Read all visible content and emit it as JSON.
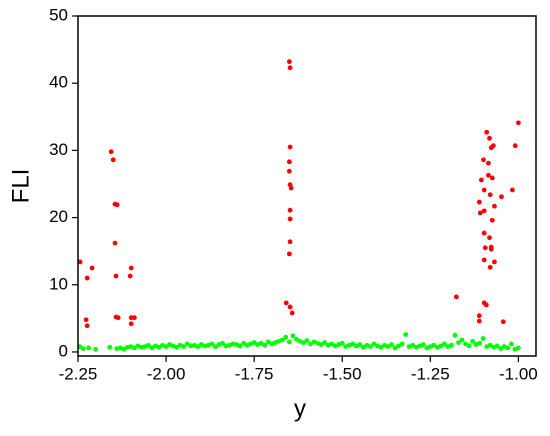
{
  "chart_data": {
    "type": "scatter",
    "x_label": "y",
    "y_label": "FLI",
    "xlim": [
      -2.25,
      -0.95
    ],
    "ylim": [
      -0.6,
      50
    ],
    "xticks": [
      -2.25,
      {
        "value": -2,
        "label": "-2.00"
      },
      -1.75,
      {
        "value": -1.5,
        "label": "-1.50"
      },
      -1.25,
      {
        "value": -1,
        "label": "-1.00"
      }
    ],
    "yticks": [
      0,
      10,
      20,
      30,
      40,
      50
    ],
    "series": [
      {
        "color": "#00ff00",
        "x": [
          -2.245,
          -2.235,
          -2.22,
          -2.2,
          -2.16,
          -2.14,
          -2.13,
          -2.12,
          -2.11,
          -2.1,
          -2.09,
          -2.08,
          -2.07,
          -2.06,
          -2.05,
          -2.04,
          -2.03,
          -2.02,
          -2.01,
          -2.0,
          -1.99,
          -1.98,
          -1.97,
          -1.96,
          -1.95,
          -1.94,
          -1.93,
          -1.92,
          -1.91,
          -1.9,
          -1.89,
          -1.88,
          -1.87,
          -1.86,
          -1.85,
          -1.84,
          -1.83,
          -1.82,
          -1.81,
          -1.8,
          -1.79,
          -1.78,
          -1.77,
          -1.76,
          -1.75,
          -1.74,
          -1.73,
          -1.72,
          -1.71,
          -1.7,
          -1.69,
          -1.68,
          -1.67,
          -1.66,
          -1.65,
          -1.64,
          -1.63,
          -1.62,
          -1.61,
          -1.6,
          -1.59,
          -1.58,
          -1.57,
          -1.56,
          -1.55,
          -1.54,
          -1.53,
          -1.52,
          -1.51,
          -1.5,
          -1.49,
          -1.48,
          -1.47,
          -1.46,
          -1.45,
          -1.44,
          -1.43,
          -1.42,
          -1.41,
          -1.4,
          -1.39,
          -1.38,
          -1.37,
          -1.36,
          -1.35,
          -1.34,
          -1.33,
          -1.32,
          -1.31,
          -1.3,
          -1.29,
          -1.28,
          -1.27,
          -1.26,
          -1.25,
          -1.24,
          -1.23,
          -1.22,
          -1.21,
          -1.2,
          -1.19,
          -1.18,
          -1.17,
          -1.16,
          -1.15,
          -1.14,
          -1.13,
          -1.12,
          -1.11,
          -1.1,
          -1.09,
          -1.08,
          -1.07,
          -1.06,
          -1.05,
          -1.04,
          -1.03,
          -1.02,
          -1.01,
          -1.0
        ],
        "values": [
          0.8,
          0.5,
          0.6,
          0.4,
          0.7,
          0.5,
          0.6,
          0.4,
          0.7,
          0.8,
          0.6,
          0.9,
          0.7,
          0.8,
          1.0,
          0.6,
          0.9,
          0.7,
          1.0,
          0.8,
          1.1,
          0.9,
          0.7,
          1.0,
          0.8,
          1.2,
          0.9,
          1.0,
          0.8,
          1.1,
          0.9,
          1.0,
          1.2,
          0.8,
          1.1,
          1.3,
          0.9,
          1.0,
          1.2,
          1.1,
          0.9,
          1.3,
          1.0,
          1.2,
          1.4,
          1.1,
          1.3,
          1.0,
          1.5,
          1.2,
          1.4,
          1.6,
          1.8,
          2.2,
          1.5,
          2.4,
          1.9,
          1.6,
          1.4,
          1.7,
          1.2,
          1.5,
          1.3,
          1.1,
          1.4,
          1.0,
          1.2,
          0.9,
          1.1,
          1.3,
          0.8,
          1.0,
          1.2,
          0.9,
          1.1,
          0.7,
          1.0,
          0.8,
          1.2,
          0.9,
          0.7,
          1.0,
          0.8,
          1.1,
          0.6,
          0.9,
          1.2,
          2.6,
          0.8,
          1.0,
          0.7,
          0.9,
          1.1,
          0.6,
          0.8,
          1.0,
          0.7,
          0.9,
          1.2,
          0.8,
          1.0,
          2.5,
          1.4,
          1.8,
          1.2,
          0.9,
          1.6,
          1.1,
          1.3,
          2.0,
          0.8,
          1.0,
          0.7,
          0.9,
          0.5,
          0.8,
          0.6,
          1.2,
          0.4,
          0.6
        ]
      },
      {
        "color": "#ff0000",
        "x": [
          -2.244,
          -2.224,
          -2.21,
          -2.227,
          -2.224,
          -2.156,
          -2.15,
          -2.145,
          -2.139,
          -2.145,
          -2.142,
          -2.142,
          -2.136,
          -2.099,
          -2.102,
          -2.099,
          -2.099,
          -2.09,
          -1.65,
          -1.648,
          -1.648,
          -1.65,
          -1.65,
          -1.648,
          -1.645,
          -1.648,
          -1.648,
          -1.648,
          -1.65,
          -1.659,
          -1.648,
          -1.642,
          -1.176,
          -1.111,
          -1.111,
          -1.097,
          -1.091,
          -1.09,
          -1.082,
          -1.099,
          -1.085,
          -1.105,
          -1.085,
          -1.097,
          -1.08,
          -1.111,
          -1.097,
          -1.108,
          -1.097,
          -1.082,
          -1.094,
          -1.077,
          -1.097,
          -1.08,
          -1.068,
          -1.074,
          -1.068,
          -1.074,
          -1.071,
          -1.077,
          -1.077,
          -1.048,
          -1.043,
          -1.017,
          -1.0,
          -1.009
        ],
        "values": [
          13.4,
          11.0,
          12.5,
          4.8,
          3.9,
          29.8,
          28.6,
          22.0,
          21.9,
          16.2,
          11.3,
          5.2,
          5.1,
          12.5,
          11.3,
          5.1,
          4.2,
          5.1,
          43.2,
          42.3,
          30.5,
          28.3,
          26.9,
          24.9,
          24.4,
          21.1,
          19.8,
          16.4,
          14.6,
          7.3,
          6.7,
          5.8,
          8.2,
          5.4,
          4.6,
          7.3,
          7.0,
          32.7,
          31.8,
          28.6,
          28.1,
          25.6,
          26.3,
          24.1,
          23.4,
          22.3,
          21.0,
          20.7,
          17.7,
          17.0,
          15.5,
          15.6,
          13.7,
          12.6,
          13.4,
          19.6,
          21.7,
          25.9,
          30.7,
          30.4,
          15.3,
          23.1,
          4.5,
          24.1,
          34.1,
          30.7
        ]
      }
    ]
  }
}
